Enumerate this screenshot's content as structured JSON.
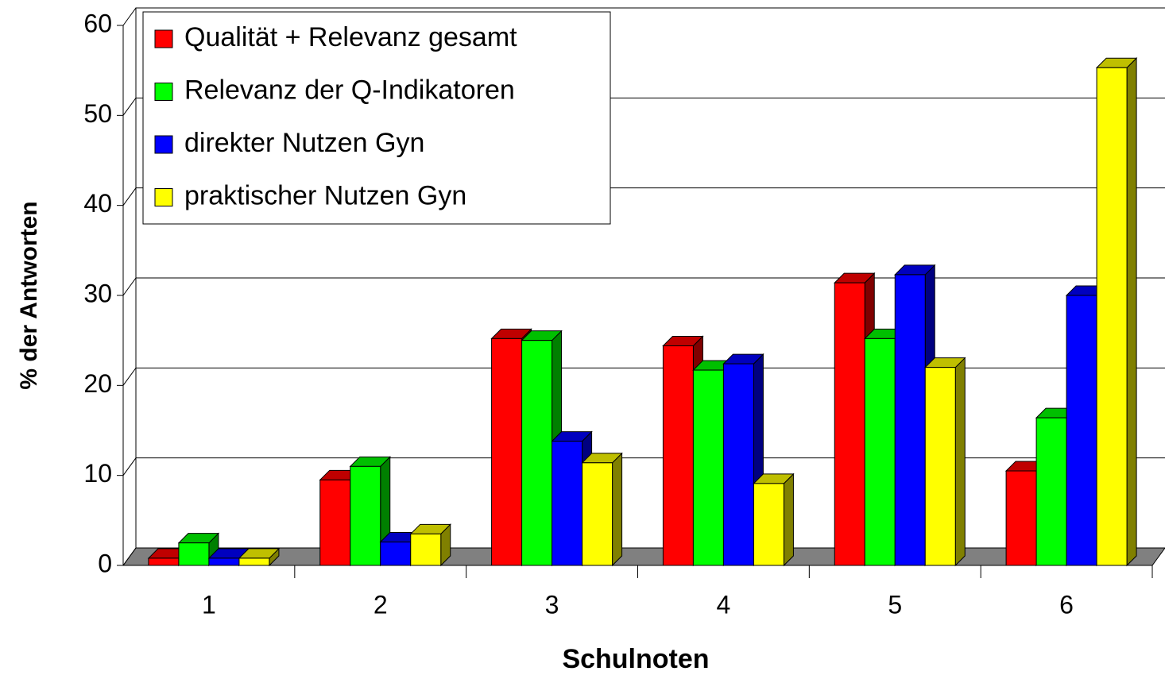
{
  "chart_data": {
    "type": "bar",
    "x_label": "Schulnoten",
    "y_label": "% der Antworten",
    "categories": [
      "1",
      "2",
      "3",
      "4",
      "5",
      "6"
    ],
    "series": [
      {
        "name": "Qualität + Relevanz gesamt",
        "color": "#ff0000",
        "values": [
          0.8,
          9.5,
          25.2,
          24.4,
          31.4,
          10.5
        ]
      },
      {
        "name": "Relevanz der Q-Indikatoren",
        "color": "#00ff00",
        "values": [
          2.5,
          11,
          25,
          21.7,
          25.2,
          16.4
        ]
      },
      {
        "name": "direkter Nutzen Gyn",
        "color": "#0000ff",
        "values": [
          0.8,
          2.6,
          13.8,
          22.4,
          32.3,
          30
        ]
      },
      {
        "name": "praktischer Nutzen Gyn",
        "color": "#ffff00",
        "values": [
          0.8,
          3.5,
          11.4,
          9.1,
          22,
          55.3
        ]
      }
    ],
    "ylim": [
      0,
      60
    ],
    "yticks": [
      0,
      10,
      20,
      30,
      40,
      50,
      60
    ],
    "grid": true,
    "legend": "top-left"
  }
}
